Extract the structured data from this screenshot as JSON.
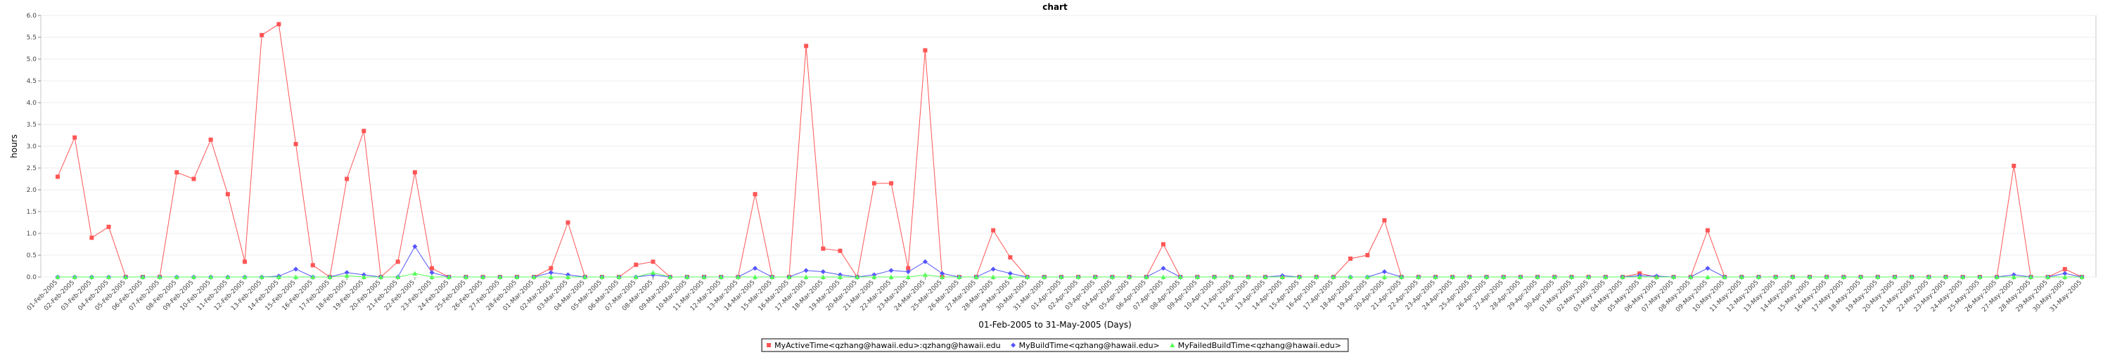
{
  "chart_data": {
    "type": "line",
    "title": "chart",
    "xlabel": "01-Feb-2005 to 31-May-2005 (Days)",
    "ylabel": "hours",
    "ylim": [
      0,
      6.0
    ],
    "yticks": [
      "0.0",
      "0.5",
      "1.0",
      "1.5",
      "2.0",
      "2.5",
      "3.0",
      "3.5",
      "4.0",
      "4.5",
      "5.0",
      "5.5",
      "6.0"
    ],
    "grid": true,
    "legend_position": "bottom",
    "categories": [
      "01-Feb-2005",
      "02-Feb-2005",
      "03-Feb-2005",
      "04-Feb-2005",
      "05-Feb-2005",
      "06-Feb-2005",
      "07-Feb-2005",
      "08-Feb-2005",
      "09-Feb-2005",
      "10-Feb-2005",
      "11-Feb-2005",
      "12-Feb-2005",
      "13-Feb-2005",
      "14-Feb-2005",
      "15-Feb-2005",
      "16-Feb-2005",
      "17-Feb-2005",
      "18-Feb-2005",
      "19-Feb-2005",
      "20-Feb-2005",
      "21-Feb-2005",
      "22-Feb-2005",
      "23-Feb-2005",
      "24-Feb-2005",
      "25-Feb-2005",
      "26-Feb-2005",
      "27-Feb-2005",
      "28-Feb-2005",
      "01-Mar-2005",
      "02-Mar-2005",
      "03-Mar-2005",
      "04-Mar-2005",
      "05-Mar-2005",
      "06-Mar-2005",
      "07-Mar-2005",
      "08-Mar-2005",
      "09-Mar-2005",
      "10-Mar-2005",
      "11-Mar-2005",
      "12-Mar-2005",
      "13-Mar-2005",
      "14-Mar-2005",
      "15-Mar-2005",
      "16-Mar-2005",
      "17-Mar-2005",
      "18-Mar-2005",
      "19-Mar-2005",
      "20-Mar-2005",
      "21-Mar-2005",
      "22-Mar-2005",
      "23-Mar-2005",
      "24-Mar-2005",
      "25-Mar-2005",
      "26-Mar-2005",
      "27-Mar-2005",
      "28-Mar-2005",
      "29-Mar-2005",
      "30-Mar-2005",
      "31-Mar-2005",
      "01-Apr-2005",
      "02-Apr-2005",
      "03-Apr-2005",
      "04-Apr-2005",
      "05-Apr-2005",
      "06-Apr-2005",
      "07-Apr-2005",
      "08-Apr-2005",
      "09-Apr-2005",
      "10-Apr-2005",
      "11-Apr-2005",
      "12-Apr-2005",
      "13-Apr-2005",
      "14-Apr-2005",
      "15-Apr-2005",
      "16-Apr-2005",
      "17-Apr-2005",
      "18-Apr-2005",
      "19-Apr-2005",
      "20-Apr-2005",
      "21-Apr-2005",
      "22-Apr-2005",
      "23-Apr-2005",
      "24-Apr-2005",
      "25-Apr-2005",
      "26-Apr-2005",
      "27-Apr-2005",
      "28-Apr-2005",
      "29-Apr-2005",
      "30-Apr-2005",
      "01-May-2005",
      "02-May-2005",
      "03-May-2005",
      "04-May-2005",
      "05-May-2005",
      "06-May-2005",
      "07-May-2005",
      "08-May-2005",
      "09-May-2005",
      "10-May-2005",
      "11-May-2005",
      "12-May-2005",
      "13-May-2005",
      "14-May-2005",
      "15-May-2005",
      "16-May-2005",
      "17-May-2005",
      "18-May-2005",
      "19-May-2005",
      "20-May-2005",
      "21-May-2005",
      "22-May-2005",
      "23-May-2005",
      "24-May-2005",
      "25-May-2005",
      "26-May-2005",
      "27-May-2005",
      "28-May-2005",
      "29-May-2005",
      "30-May-2005",
      "31-May-2005"
    ],
    "series": [
      {
        "name": "MyActiveTime<qzhang@hawaii.edu>:qzhang@hawaii.edu",
        "color": "#ff5555",
        "marker": "square",
        "values": [
          2.3,
          3.2,
          0.9,
          1.15,
          0,
          0,
          0,
          2.4,
          2.25,
          3.15,
          1.9,
          0.35,
          5.55,
          5.8,
          3.05,
          0.27,
          0,
          2.25,
          3.35,
          0,
          0.35,
          2.4,
          0.2,
          0,
          0,
          0,
          0,
          0,
          0,
          0.2,
          1.25,
          0,
          0,
          0,
          0.28,
          0.35,
          0,
          0,
          0,
          0,
          0,
          1.9,
          0,
          0,
          5.3,
          0.65,
          0.6,
          0,
          2.15,
          2.15,
          0.2,
          5.2,
          0,
          0,
          0,
          1.07,
          0.45,
          0,
          0,
          0,
          0,
          0,
          0,
          0,
          0,
          0.75,
          0,
          0,
          0,
          0,
          0,
          0,
          0,
          0,
          0,
          0,
          0.42,
          0.5,
          1.3,
          0,
          0,
          0,
          0,
          0,
          0,
          0,
          0,
          0,
          0,
          0,
          0,
          0,
          0,
          0.08,
          0,
          0,
          0,
          1.07,
          0,
          0,
          0,
          0,
          0,
          0,
          0,
          0,
          0,
          0,
          0,
          0,
          0,
          0,
          0,
          0,
          0,
          2.55,
          0,
          0,
          0.18,
          0
        ]
      },
      {
        "name": "MyBuildTime<qzhang@hawaii.edu>",
        "color": "#5555ff",
        "marker": "diamond",
        "values": [
          0,
          0,
          0,
          0,
          0,
          0,
          0,
          0,
          0,
          0,
          0,
          0,
          0,
          0.02,
          0.18,
          0,
          0,
          0.1,
          0.05,
          0,
          0,
          0.7,
          0.1,
          0,
          0,
          0,
          0,
          0,
          0,
          0.1,
          0.05,
          0,
          0,
          0,
          0,
          0.05,
          0,
          0,
          0,
          0,
          0,
          0.2,
          0,
          0,
          0.15,
          0.12,
          0.05,
          0,
          0.05,
          0.15,
          0.12,
          0.35,
          0.08,
          0,
          0,
          0.18,
          0.08,
          0,
          0,
          0,
          0,
          0,
          0,
          0,
          0,
          0.2,
          0,
          0,
          0,
          0,
          0,
          0,
          0.03,
          0,
          0,
          0,
          0,
          0,
          0.12,
          0,
          0,
          0,
          0,
          0,
          0,
          0,
          0,
          0,
          0,
          0,
          0,
          0,
          0,
          0.03,
          0.02,
          0,
          0,
          0.2,
          0,
          0,
          0,
          0,
          0,
          0,
          0,
          0,
          0,
          0,
          0,
          0,
          0,
          0,
          0,
          0,
          0,
          0.05,
          0,
          0,
          0.08,
          0
        ]
      },
      {
        "name": "MyFailedBuildTime<qzhang@hawaii.edu>",
        "color": "#55ff55",
        "marker": "triangle",
        "values": [
          0,
          0,
          0,
          0,
          0,
          0,
          0,
          0,
          0,
          0,
          0,
          0,
          0,
          0,
          0,
          0,
          0,
          0.03,
          0,
          0,
          0,
          0.08,
          0,
          0,
          0,
          0,
          0,
          0,
          0,
          0,
          0,
          0,
          0,
          0,
          0,
          0.1,
          0,
          0,
          0,
          0,
          0,
          0,
          0,
          0,
          0,
          0,
          0,
          0,
          0,
          0,
          0,
          0.05,
          0,
          0,
          0,
          0,
          0,
          0,
          0,
          0,
          0,
          0,
          0,
          0,
          0,
          0,
          0,
          0,
          0,
          0,
          0,
          0,
          0,
          0,
          0,
          0,
          0,
          0,
          0,
          0,
          0,
          0,
          0,
          0,
          0,
          0,
          0,
          0,
          0,
          0,
          0,
          0,
          0,
          0,
          0,
          0,
          0,
          0,
          0,
          0,
          0,
          0,
          0,
          0,
          0,
          0,
          0,
          0,
          0,
          0,
          0,
          0,
          0,
          0,
          0,
          0,
          0,
          0,
          0,
          0
        ]
      }
    ]
  }
}
